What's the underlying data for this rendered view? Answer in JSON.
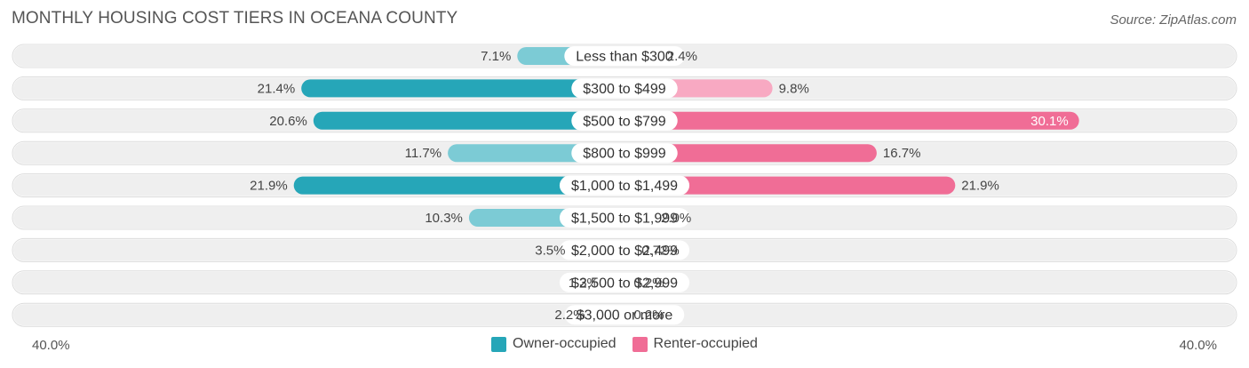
{
  "title": "MONTHLY HOUSING COST TIERS IN OCEANA COUNTY",
  "source": "Source: ZipAtlas.com",
  "axis": {
    "left_label": "40.0%",
    "right_label": "40.0%"
  },
  "legend": {
    "owner": "Owner-occupied",
    "renter": "Renter-occupied"
  },
  "colors": {
    "owner_dark": "#26a6b8",
    "owner_light": "#7ccbd5",
    "renter_dark": "#f06d96",
    "renter_light": "#f8a9c2",
    "track": "#efefef"
  },
  "chart_data": {
    "type": "bar",
    "orientation": "horizontal-diverging",
    "title": "MONTHLY HOUSING COST TIERS IN OCEANA COUNTY",
    "xlim": [
      -40,
      40
    ],
    "categories": [
      "Less than $300",
      "$300 to $499",
      "$500 to $799",
      "$800 to $999",
      "$1,000 to $1,499",
      "$1,500 to $1,999",
      "$2,000 to $2,499",
      "$2,500 to $2,999",
      "$3,000 or more"
    ],
    "series": [
      {
        "name": "Owner-occupied",
        "values": [
          7.1,
          21.4,
          20.6,
          11.7,
          21.9,
          10.3,
          3.5,
          1.3,
          2.2
        ],
        "labels": [
          "7.1%",
          "21.4%",
          "20.6%",
          "11.7%",
          "21.9%",
          "10.3%",
          "3.5%",
          "1.3%",
          "2.2%"
        ]
      },
      {
        "name": "Renter-occupied",
        "values": [
          2.4,
          9.8,
          30.1,
          16.7,
          21.9,
          2.0,
          0.72,
          0.2,
          0.2
        ],
        "labels": [
          "2.4%",
          "9.8%",
          "30.1%",
          "16.7%",
          "21.9%",
          "2.0%",
          "0.72%",
          "0.2%",
          "0.2%"
        ]
      }
    ]
  }
}
